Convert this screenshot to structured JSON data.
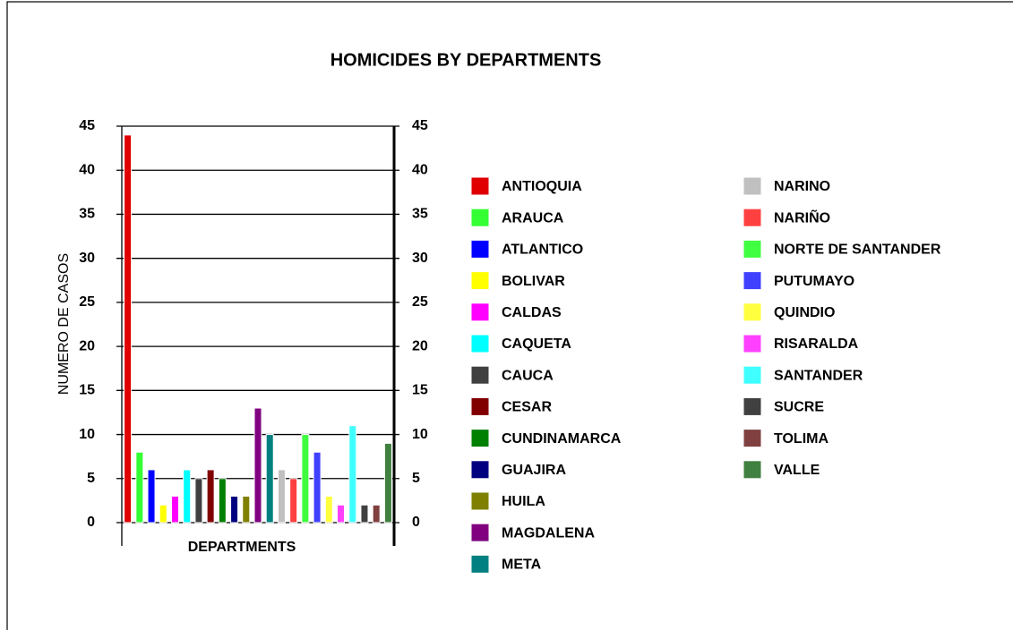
{
  "chart_data": {
    "type": "bar",
    "title": "HOMICIDES BY DEPARTMENTS",
    "x_label": "DEPARTMENTS",
    "y_label": "NUMERO DE CASOS",
    "categories": [
      "ANTIOQUIA",
      "ARAUCA",
      "ATLANTICO",
      "BOLIVAR",
      "CALDAS",
      "CAQUETA",
      "CAUCA",
      "CESAR",
      "CUNDINAMARCA",
      "GUAJIRA",
      "HUILA",
      "MAGDALENA",
      "META",
      "NARINO",
      "NARIÑO",
      "NORTE DE SANTANDER",
      "PUTUMAYO",
      "QUINDIO",
      "RISARALDA",
      "SANTANDER",
      "SUCRE",
      "TOLIMA",
      "VALLE"
    ],
    "values": [
      44,
      8,
      6,
      2,
      3,
      6,
      5,
      6,
      5,
      3,
      3,
      13,
      10,
      6,
      5,
      10,
      8,
      3,
      2,
      11,
      2,
      2,
      9
    ],
    "colors": [
      "#e00000",
      "#33ff33",
      "#0000ff",
      "#ffff00",
      "#ff00ff",
      "#00ffff",
      "#404040",
      "#800000",
      "#008000",
      "#000080",
      "#808000",
      "#800080",
      "#008080",
      "#c0c0c0",
      "#ff4040",
      "#40ff40",
      "#4040ff",
      "#ffff40",
      "#ff40ff",
      "#40ffff",
      "#404040",
      "#804040",
      "#408040"
    ],
    "ylim": [
      0,
      45
    ],
    "yticks": [
      0,
      5,
      10,
      15,
      20,
      25,
      30,
      35,
      40,
      45
    ],
    "grid": true,
    "legend": "right"
  }
}
